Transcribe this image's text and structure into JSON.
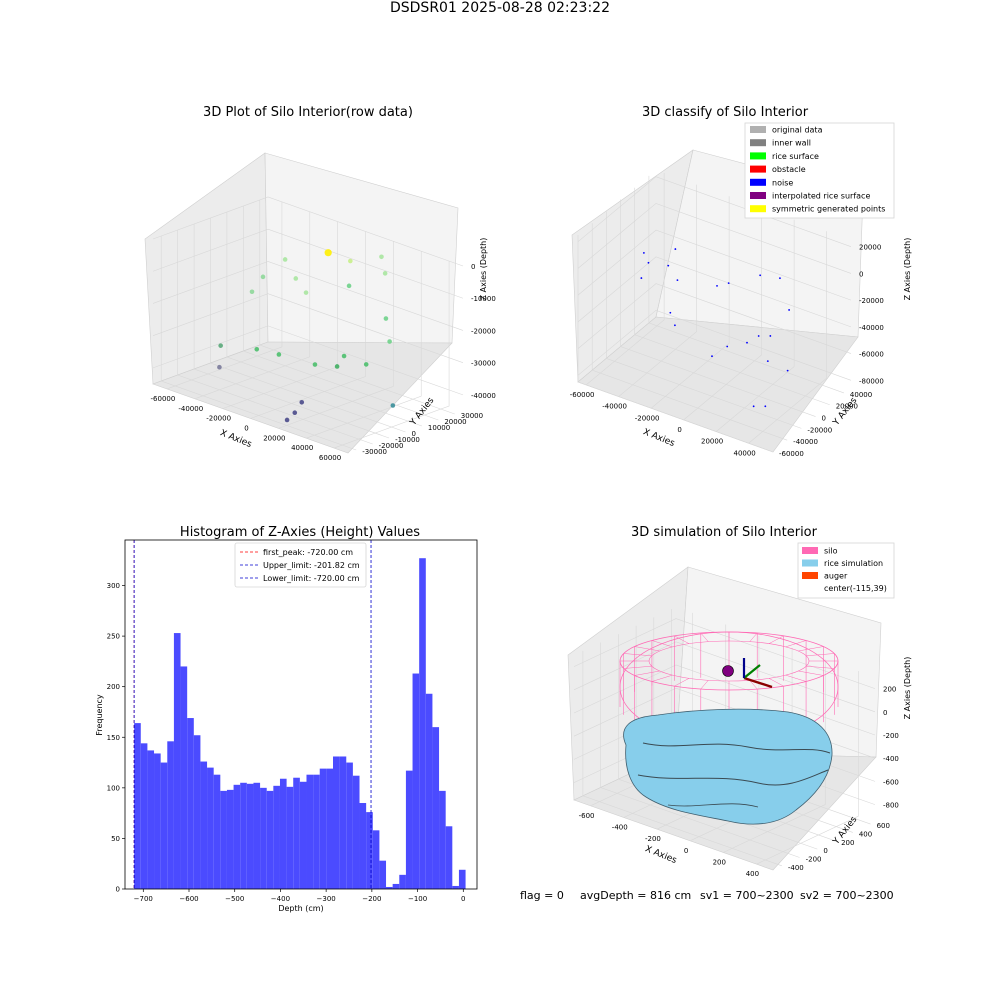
{
  "figure_title": "DSDSR01 2025-08-28 02:23:22",
  "status": {
    "flag": "flag = 0",
    "avg_depth": "avgDepth = 816 cm",
    "sv1": "sv1 = 700~2300",
    "sv2": "sv2 = 700~2300"
  },
  "colors": {
    "hist_bar": "#4b4bff",
    "first_peak_line": "#ff0000",
    "limit_line": "#0000cc",
    "silo": "#ff69b4",
    "rice": "#87ceeb",
    "auger": "#ff4500",
    "pane": "#f2f2f2",
    "grid": "#d8d8d8"
  },
  "chart_data": [
    {
      "type": "scatter",
      "projection": "3d",
      "title": "3D Plot of Silo Interior(row data)",
      "xlabel": "X Axies",
      "ylabel": "Y Axies",
      "zlabel": "Z Axies (Depth)",
      "xlim": [
        -70000,
        70000
      ],
      "ylim": [
        -35000,
        35000
      ],
      "zlim": [
        -45000,
        0
      ],
      "x_ticks": [
        "-60000",
        "-40000",
        "-20000",
        "0",
        "20000",
        "40000",
        "60000"
      ],
      "y_ticks": [
        "-30000",
        "-20000",
        "-10000",
        "0",
        "10000",
        "20000",
        "30000"
      ],
      "z_ticks": [
        "0",
        "-10000",
        "-20000",
        "-30000",
        "-40000"
      ],
      "points": [
        {
          "x": -15000,
          "y": 25000,
          "z": -7000,
          "color": "#ffef00"
        },
        {
          "x": 15000,
          "y": 32000,
          "z": -5000,
          "color": "#a8e6a0"
        },
        {
          "x": 20000,
          "y": 30000,
          "z": -9000,
          "color": "#a8e6a0"
        },
        {
          "x": 0,
          "y": 25000,
          "z": -15000,
          "color": "#6fd18a"
        },
        {
          "x": -5000,
          "y": 30000,
          "z": -9000,
          "color": "#c8f08a"
        },
        {
          "x": -40000,
          "y": 20000,
          "z": -12000,
          "color": "#a8e6a0"
        },
        {
          "x": -30000,
          "y": 18000,
          "z": -16000,
          "color": "#a8e6a0"
        },
        {
          "x": -50000,
          "y": 15000,
          "z": -18000,
          "color": "#8fd89a"
        },
        {
          "x": -52000,
          "y": 10000,
          "z": -22000,
          "color": "#8fd89a"
        },
        {
          "x": -25000,
          "y": 20000,
          "z": -20000,
          "color": "#a8e6a0"
        },
        {
          "x": 30000,
          "y": 22000,
          "z": -20000,
          "color": "#6fd18a"
        },
        {
          "x": 35000,
          "y": 20000,
          "z": -26000,
          "color": "#6fd18a"
        },
        {
          "x": 20000,
          "y": 5000,
          "z": -30000,
          "color": "#4cbf6d"
        },
        {
          "x": 30000,
          "y": 10000,
          "z": -32000,
          "color": "#4cbf6d"
        },
        {
          "x": 5000,
          "y": 0,
          "z": -34000,
          "color": "#4cbf6d"
        },
        {
          "x": -15000,
          "y": -5000,
          "z": -33000,
          "color": "#4cbf6d"
        },
        {
          "x": -25000,
          "y": -10000,
          "z": -32000,
          "color": "#4cbf6d"
        },
        {
          "x": 15000,
          "y": 5000,
          "z": -34000,
          "color": "#3fae60"
        },
        {
          "x": -45000,
          "y": -15000,
          "z": -33000,
          "color": "#5aa87a"
        },
        {
          "x": -40000,
          "y": -20000,
          "z": -38000,
          "color": "#7a7a9a"
        },
        {
          "x": 55000,
          "y": 5000,
          "z": -40000,
          "color": "#3a8f9a"
        },
        {
          "x": 25000,
          "y": -25000,
          "z": -38000,
          "color": "#4a4a8a"
        },
        {
          "x": 20000,
          "y": -25000,
          "z": -42000,
          "color": "#4a4a8a"
        },
        {
          "x": 18000,
          "y": -28000,
          "z": -44000,
          "color": "#4a4a8a"
        }
      ]
    },
    {
      "type": "scatter",
      "projection": "3d",
      "title": "3D classify of Silo Interior",
      "xlabel": "X Axies",
      "ylabel": "Y Axies",
      "zlabel": "Z Axies (Depth)",
      "xlim": [
        -65000,
        55000
      ],
      "ylim": [
        -60000,
        50000
      ],
      "zlim": [
        -85000,
        25000
      ],
      "x_ticks": [
        "-60000",
        "-40000",
        "-20000",
        "0",
        "20000",
        "40000"
      ],
      "y_ticks": [
        "-60000",
        "-40000",
        "-20000",
        "0",
        "20000",
        "40000"
      ],
      "z_ticks": [
        "20000",
        "0",
        "-20000",
        "-40000",
        "-60000",
        "-80000"
      ],
      "legend_position": "top-right",
      "legend": [
        {
          "label": "original data",
          "color": "#b0b0b0"
        },
        {
          "label": "inner wall",
          "color": "#808080"
        },
        {
          "label": "rice surface",
          "color": "#00ff00"
        },
        {
          "label": "obstacle",
          "color": "#ff0000"
        },
        {
          "label": "noise",
          "color": "#0000ff"
        },
        {
          "label": "interpolated rice surface",
          "color": "#800080"
        },
        {
          "label": "symmetric generated points",
          "color": "#ffff00"
        }
      ],
      "points": [
        {
          "x": -40000,
          "y": 20000,
          "z": -10000
        },
        {
          "x": -55000,
          "y": 10000,
          "z": -15000
        },
        {
          "x": -50000,
          "y": 5000,
          "z": -18000
        },
        {
          "x": -40000,
          "y": 10000,
          "z": -18000
        },
        {
          "x": -30000,
          "y": 0,
          "z": -20000
        },
        {
          "x": -10000,
          "y": 10000,
          "z": -20000
        },
        {
          "x": -5000,
          "y": 15000,
          "z": -18000
        },
        {
          "x": 10000,
          "y": 25000,
          "z": -10000
        },
        {
          "x": 20000,
          "y": 30000,
          "z": -10000
        },
        {
          "x": 30000,
          "y": 20000,
          "z": -25000
        },
        {
          "x": -50000,
          "y": -5000,
          "z": -25000
        },
        {
          "x": -30000,
          "y": -10000,
          "z": -40000
        },
        {
          "x": -25000,
          "y": -15000,
          "z": -45000
        },
        {
          "x": 5000,
          "y": -10000,
          "z": -50000
        },
        {
          "x": 0,
          "y": -20000,
          "z": -55000
        },
        {
          "x": 15000,
          "y": -5000,
          "z": -45000
        },
        {
          "x": 20000,
          "y": 0,
          "z": -40000
        },
        {
          "x": 25000,
          "y": 5000,
          "z": -40000
        },
        {
          "x": 30000,
          "y": -10000,
          "z": -50000
        },
        {
          "x": 40000,
          "y": -5000,
          "z": -55000
        },
        {
          "x": 35000,
          "y": -25000,
          "z": -75000
        },
        {
          "x": 30000,
          "y": -30000,
          "z": -75000
        }
      ]
    },
    {
      "type": "bar",
      "title": "Histogram of Z-Axies (Height) Values",
      "xlabel": "Depth (cm)",
      "ylabel": "Frequency",
      "xlim": [
        -740,
        30
      ],
      "ylim": [
        0,
        345
      ],
      "x_ticks": [
        -700,
        -600,
        -500,
        -400,
        -300,
        -200,
        -100,
        0
      ],
      "y_ticks": [
        0,
        50,
        100,
        150,
        200,
        250,
        300
      ],
      "bin_start": -720,
      "bin_width": 14.5,
      "values": [
        164,
        144,
        137,
        134,
        125,
        146,
        253,
        220,
        169,
        152,
        126,
        120,
        113,
        97,
        98,
        103,
        105,
        104,
        105,
        100,
        97,
        102,
        109,
        101,
        110,
        106,
        113,
        113,
        119,
        119,
        131,
        131,
        125,
        112,
        85,
        76,
        58,
        28,
        2,
        5,
        14,
        117,
        213,
        327,
        193,
        160,
        97,
        62,
        3,
        19
      ],
      "reference_lines": [
        {
          "value": -720.0,
          "style": "first_peak"
        },
        {
          "value": -201.82,
          "style": "limit"
        },
        {
          "value": -720.0,
          "style": "limit"
        }
      ],
      "legend_position": "top-right",
      "legend": [
        {
          "label": "first_peak: -720.00 cm",
          "color": "#ff0000"
        },
        {
          "label": "Upper_limit: -201.82 cm",
          "color": "#0000cc"
        },
        {
          "label": "Lower_limit: -720.00 cm",
          "color": "#0000cc"
        }
      ]
    },
    {
      "type": "surface",
      "projection": "3d",
      "title": "3D simulation of Silo Interior",
      "xlabel": "X Axies",
      "ylabel": "Y Axies",
      "zlabel": "Z Axies (Depth)",
      "xlim": [
        -700,
        500
      ],
      "ylim": [
        -500,
        650
      ],
      "zlim": [
        -950,
        300
      ],
      "x_ticks": [
        "-600",
        "-400",
        "-200",
        "0",
        "200",
        "400"
      ],
      "y_ticks": [
        "-400",
        "-200",
        "0",
        "200",
        "400",
        "600"
      ],
      "z_ticks": [
        "200",
        "0",
        "-200",
        "-400",
        "-600",
        "-800"
      ],
      "legend_position": "top-right",
      "legend": [
        {
          "label": "silo",
          "color": "#ff69b4"
        },
        {
          "label": "rice simulation",
          "color": "#87ceeb"
        },
        {
          "label": "auger",
          "color": "#ff4500"
        },
        {
          "label": "center(-115,39)",
          "color": ""
        }
      ]
    }
  ]
}
